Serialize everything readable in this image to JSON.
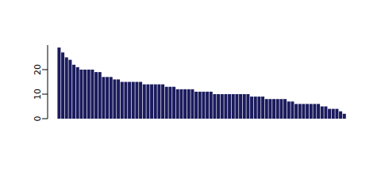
{
  "chart_data": {
    "type": "bar",
    "categories": [
      null,
      null,
      null,
      null,
      null,
      null,
      null,
      null,
      null,
      null,
      null,
      null,
      null,
      null,
      null,
      null,
      null,
      null,
      null,
      null,
      null,
      null,
      null,
      null,
      null,
      null,
      null,
      null,
      null,
      null,
      null,
      null,
      null,
      null,
      null,
      null,
      null,
      null,
      null,
      null,
      null,
      null,
      null,
      null,
      null,
      null,
      null,
      null,
      null,
      null,
      null,
      null,
      null,
      null,
      null,
      null,
      null,
      null,
      null,
      null,
      null,
      null,
      null,
      null,
      null,
      null,
      null,
      null,
      null,
      null,
      null,
      null,
      null,
      null,
      null,
      null,
      null,
      null
    ],
    "values": [
      29,
      27,
      25,
      24,
      22,
      21,
      20,
      20,
      20,
      20,
      19,
      19,
      17,
      17,
      17,
      16,
      16,
      15,
      15,
      15,
      15,
      15,
      15,
      14,
      14,
      14,
      14,
      14,
      14,
      13,
      13,
      13,
      12,
      12,
      12,
      12,
      12,
      11,
      11,
      11,
      11,
      11,
      10,
      10,
      10,
      10,
      10,
      10,
      10,
      10,
      10,
      10,
      9,
      9,
      9,
      9,
      8,
      8,
      8,
      8,
      8,
      8,
      7,
      7,
      6,
      6,
      6,
      6,
      6,
      6,
      6,
      5,
      5,
      4,
      4,
      4,
      3,
      2
    ],
    "color": "#1b1b5e",
    "ylim": [
      0,
      30
    ],
    "yticks": [
      0,
      10,
      20
    ],
    "tick_labels": "y"
  }
}
